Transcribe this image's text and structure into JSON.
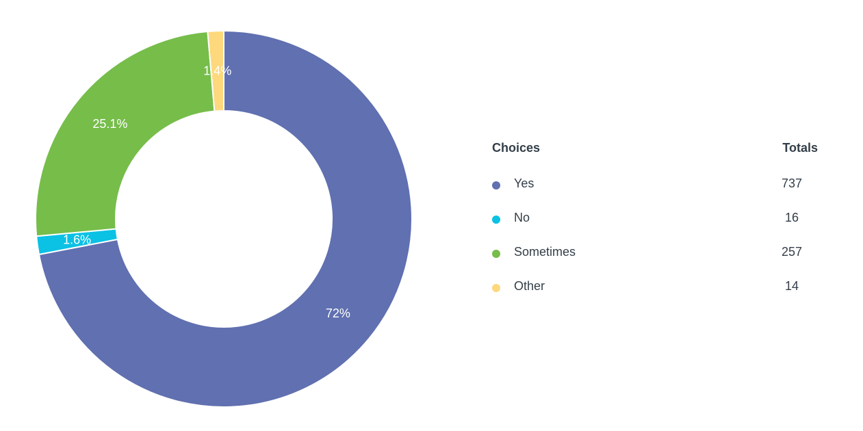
{
  "chart_data": {
    "type": "pie",
    "variant": "donut",
    "categories": [
      "Yes",
      "No",
      "Sometimes",
      "Other"
    ],
    "values": [
      737,
      16,
      257,
      14
    ],
    "percent_labels": [
      "72%",
      "1.6%",
      "25.1%",
      "1.4%"
    ],
    "colors": [
      "#6070b0",
      "#0bc1e4",
      "#76bd4a",
      "#fdd87c"
    ],
    "legend_placement": "right"
  },
  "legend": {
    "header_choices": "Choices",
    "header_totals": "Totals",
    "rows": [
      {
        "label": "Yes",
        "total": "737"
      },
      {
        "label": "No",
        "total": "16"
      },
      {
        "label": "Sometimes",
        "total": "257"
      },
      {
        "label": "Other",
        "total": "14"
      }
    ]
  }
}
